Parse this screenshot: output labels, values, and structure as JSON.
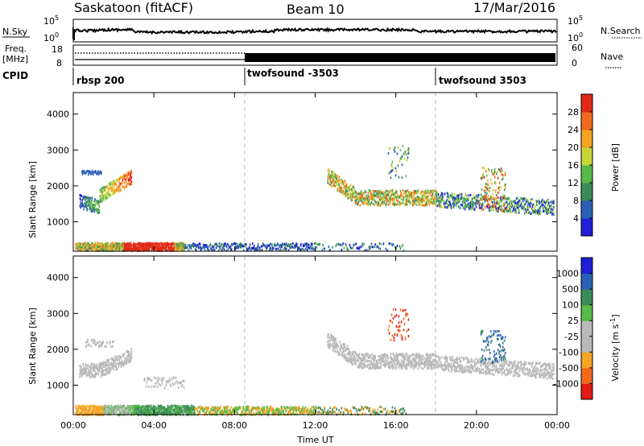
{
  "header": {
    "title_left": "Saskatoon (fitACF)",
    "title_center": "Beam 10",
    "title_right": "17/Mar/2016"
  },
  "colors": {
    "power": [
      "#1f1fd6",
      "#2a5fb8",
      "#3b8a5a",
      "#58b848",
      "#c8d53a",
      "#f5a423",
      "#ef6a1d",
      "#e12a16"
    ],
    "velocity": [
      "#e11b14",
      "#ef6a1d",
      "#f5a423",
      "#b9b9b9",
      "#b9b9b9",
      "#58b848",
      "#3b8a5a",
      "#2a5fb8",
      "#1f1fd6"
    ],
    "noise_trace": "#000000"
  },
  "panels": {
    "nsky": {
      "label": "N.Sky",
      "right_label": "N.Search",
      "ticks_left": [
        "10^5",
        "10^0"
      ],
      "ticks_right": [
        "10^5",
        "10^0"
      ]
    },
    "freq": {
      "label_top": "Freq.",
      "label_bottom": "[MHz]",
      "right_label": "Nave",
      "ticks_left": [
        "18",
        "8"
      ],
      "ticks_right": [
        "60",
        "0"
      ]
    },
    "cpid": {
      "label": "CPID",
      "modes": [
        {
          "text": "rbsp 200",
          "start": 0
        },
        {
          "text": "twofsound -3503",
          "start": 8.5
        },
        {
          "text": "twofsound 3503",
          "start": 18
        }
      ]
    }
  },
  "chart_data": [
    {
      "type": "heatmap",
      "name": "power",
      "xlabel": "",
      "ylabel": "Slant Range [km]",
      "colorbar_label": "Power [dB]",
      "colorbar_ticks": [
        "4",
        "8",
        "12",
        "16",
        "20",
        "24",
        "28"
      ],
      "x_range_hours": [
        0,
        24
      ],
      "ylim": [
        180,
        4600
      ],
      "yticks": [
        "1000",
        "2000",
        "3000",
        "4000"
      ]
    },
    {
      "type": "heatmap",
      "name": "velocity",
      "xlabel": "Time UT",
      "ylabel": "Slant Range [km]",
      "colorbar_label": "Velocity [m s^-1]",
      "colorbar_ticks": [
        "-1000",
        "-500",
        "-100",
        "-25",
        "25",
        "100",
        "500",
        "1000"
      ],
      "x_range_hours": [
        0,
        24
      ],
      "ylim": [
        180,
        4600
      ],
      "yticks": [
        "1000",
        "2000",
        "3000",
        "4000"
      ],
      "xticks": [
        "00:00",
        "04:00",
        "08:00",
        "12:00",
        "16:00",
        "20:00",
        "00:00"
      ]
    }
  ]
}
